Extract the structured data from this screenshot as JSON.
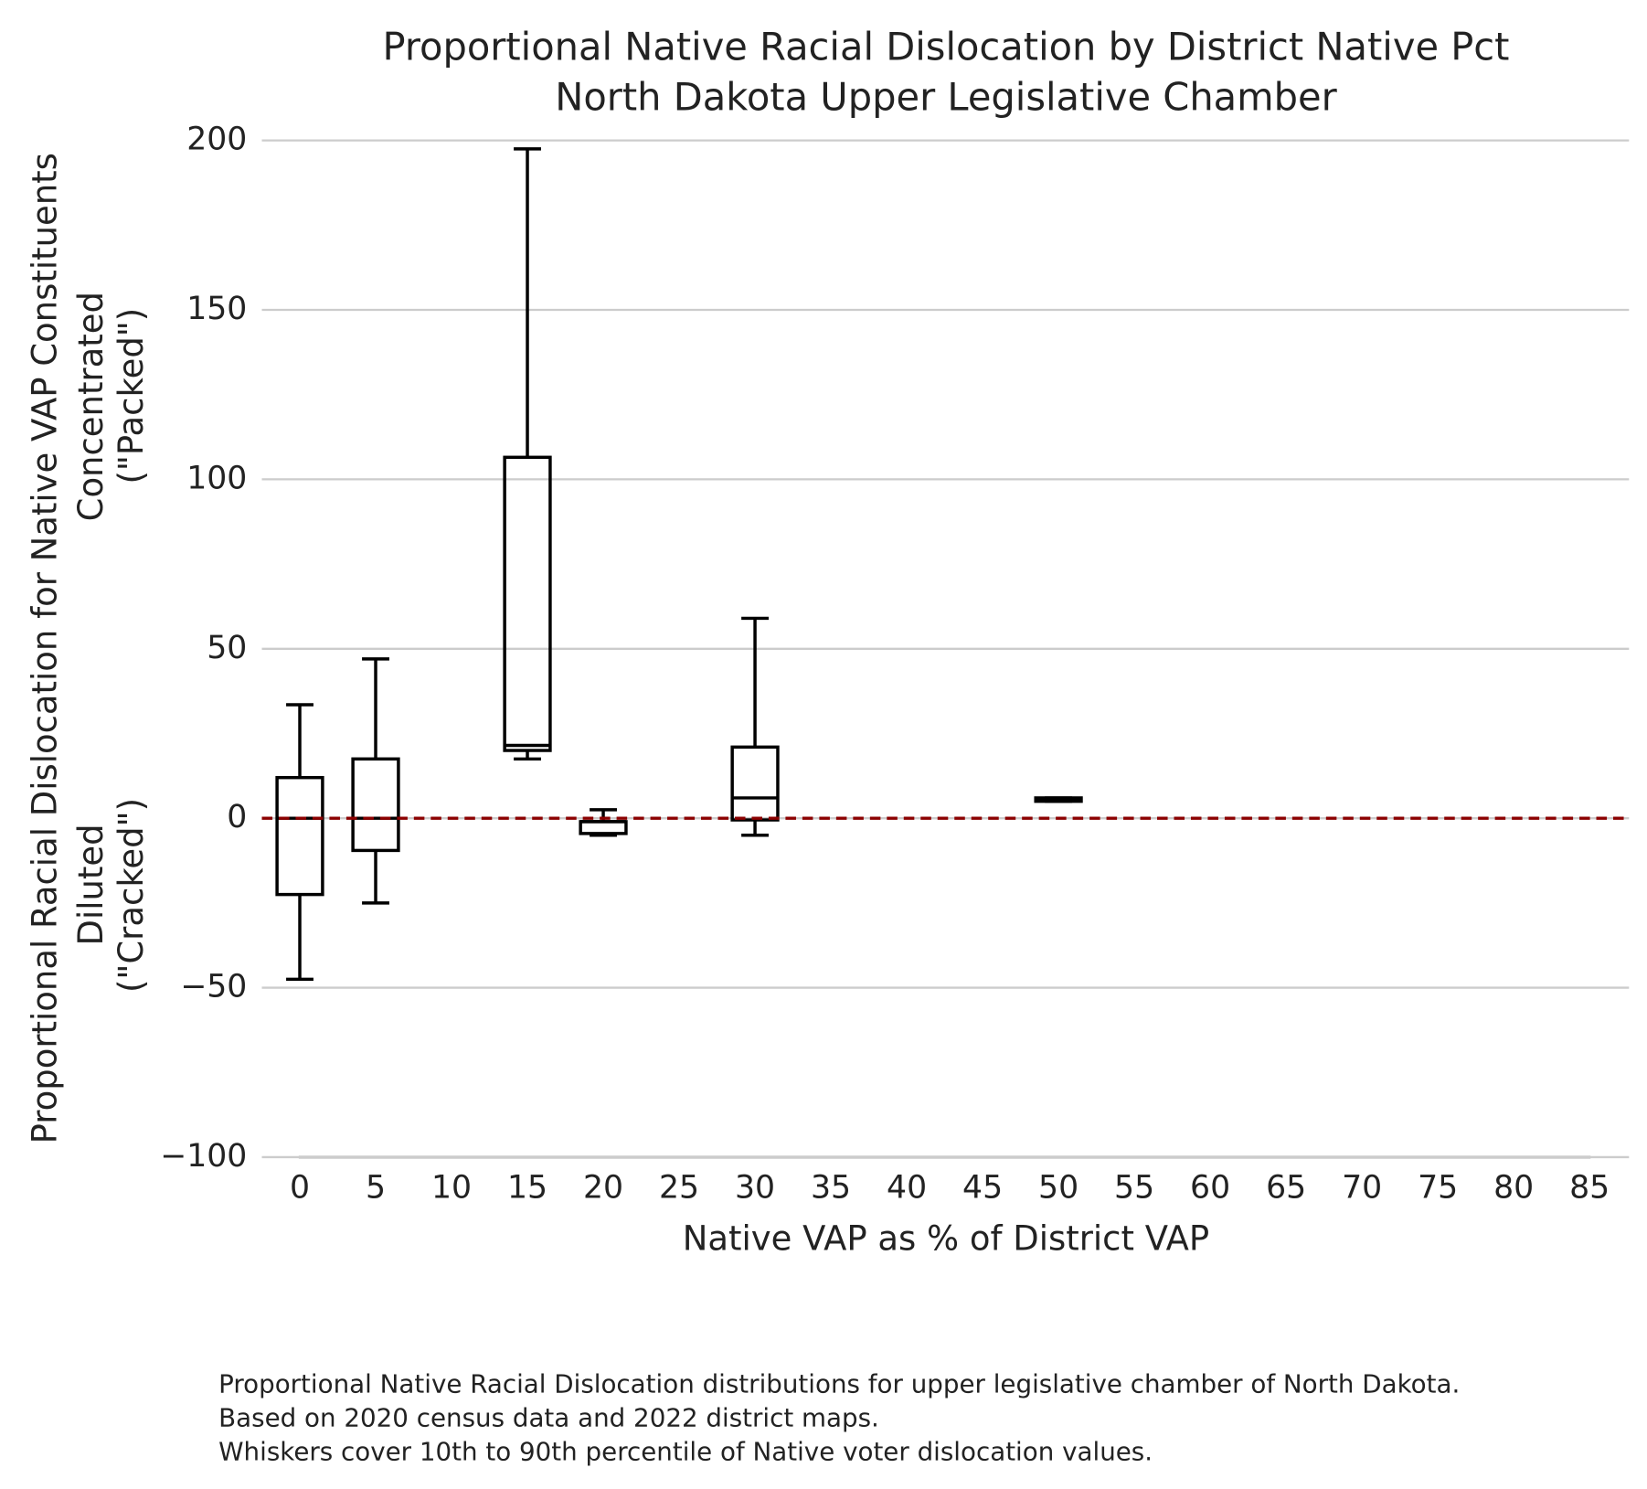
{
  "chart_data": {
    "type": "box",
    "title": [
      "Proportional Native Racial Dislocation by District Native Pct",
      "North Dakota Upper Legislative Chamber"
    ],
    "xlabel": "Native VAP as % of District VAP",
    "ylabel": "Proportional Racial Dislocation for Native VAP Constituents",
    "ylabel_upper": [
      "Concentrated",
      "(\"Packed\")"
    ],
    "ylabel_lower": [
      "Diluted",
      "(\"Cracked\")"
    ],
    "caption": [
      "Proportional Native Racial Dislocation distributions for upper legislative chamber of North Dakota.",
      "Based on 2020 census data and 2022 district maps.",
      "Whiskers cover 10th to 90th percentile of Native voter dislocation values."
    ],
    "x": [
      0,
      5,
      15,
      20,
      30,
      50
    ],
    "whisker_low": [
      -47.5,
      -25,
      17.5,
      -5,
      -5,
      5
    ],
    "q1": [
      -22.5,
      -9.5,
      20,
      -4.5,
      -0.5,
      5
    ],
    "median": [
      0,
      0,
      21.5,
      -1,
      6,
      5.5
    ],
    "q3": [
      12,
      17.5,
      106.5,
      -1,
      21,
      6
    ],
    "whisker_high": [
      33.5,
      47,
      197.5,
      2.5,
      59,
      6
    ],
    "box_width": 3,
    "color": "#000000",
    "reference_line": {
      "value": 0,
      "color": "#8b0000"
    },
    "xlim": [
      -2.5,
      87.6
    ],
    "ylim": [
      -100,
      200
    ],
    "xticks": [
      0,
      5,
      10,
      15,
      20,
      25,
      30,
      35,
      40,
      45,
      50,
      55,
      60,
      65,
      70,
      75,
      80,
      85
    ],
    "yticks": [
      {
        "value": -100,
        "label": "−100"
      },
      {
        "value": -50,
        "label": "−50"
      },
      0,
      50,
      100,
      150,
      200
    ],
    "grid": true
  }
}
